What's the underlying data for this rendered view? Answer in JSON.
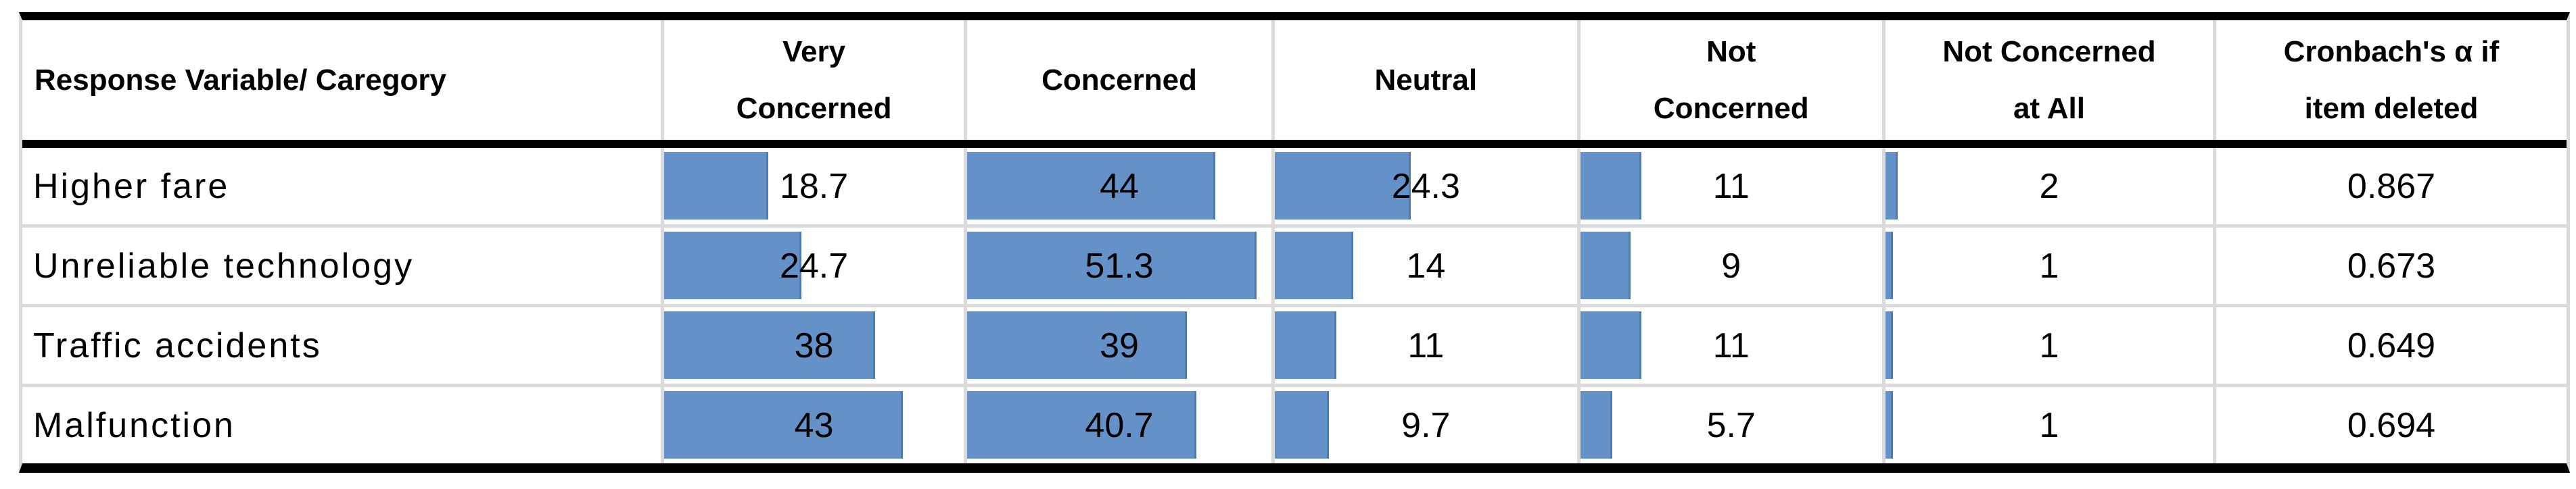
{
  "table": {
    "headers": [
      "Response Variable/ Caregory",
      "Very\nConcerned",
      "Concerned",
      "Neutral",
      "Not\nConcerned",
      "Not Concerned\nat All",
      "Cronbach's α if\nitem deleted"
    ],
    "rows": [
      {
        "label": "Higher fare",
        "bars": [
          "18.7",
          "44",
          "24.3",
          "11",
          "2"
        ],
        "cronbach": "0.867"
      },
      {
        "label": "Unreliable technology",
        "bars": [
          "24.7",
          "51.3",
          "14",
          "9",
          "1"
        ],
        "cronbach": "0.673"
      },
      {
        "label": "Traffic accidents",
        "bars": [
          "38",
          "39",
          "11",
          "11",
          "1"
        ],
        "cronbach": "0.649"
      },
      {
        "label": "Malfunction",
        "bars": [
          "43",
          "40.7",
          "9.7",
          "5.7",
          "1"
        ],
        "cronbach": "0.694"
      }
    ],
    "bar_color": "#6491c8",
    "bar_border_color": "#4f7bb0",
    "grid_line_color": "#dbdbdb",
    "border_color": "#000000"
  },
  "chart_data": {
    "type": "table",
    "title": "Concern levels by response variable with in-cell data bars",
    "columns": [
      "Response Variable/ Caregory",
      "Very Concerned",
      "Concerned",
      "Neutral",
      "Not Concerned",
      "Not Concerned at All",
      "Cronbach's α if item deleted"
    ],
    "rows": [
      {
        "category": "Higher fare",
        "very_concerned": 18.7,
        "concerned": 44,
        "neutral": 24.3,
        "not_concerned": 11,
        "not_concerned_at_all": 2,
        "cronbach_alpha_if_item_deleted": 0.867
      },
      {
        "category": "Unreliable technology",
        "very_concerned": 24.7,
        "concerned": 51.3,
        "neutral": 14,
        "not_concerned": 9,
        "not_concerned_at_all": 1,
        "cronbach_alpha_if_item_deleted": 0.673
      },
      {
        "category": "Traffic accidents",
        "very_concerned": 38,
        "concerned": 39,
        "neutral": 11,
        "not_concerned": 11,
        "not_concerned_at_all": 1,
        "cronbach_alpha_if_item_deleted": 0.649
      },
      {
        "category": "Malfunction",
        "very_concerned": 43,
        "concerned": 40.7,
        "neutral": 9.7,
        "not_concerned": 5.7,
        "not_concerned_at_all": 1,
        "cronbach_alpha_if_item_deleted": 0.694
      }
    ],
    "bars": {
      "scale_max": 51.3,
      "fill_percent_at_max": 95,
      "min_percent": 2.2,
      "color": "#6491c8",
      "note": "horizontal data bars drawn from the left edge of each concern cell, proportional to value"
    },
    "legend_position": "none",
    "grid": "light-gray column and row separators, thick black top/bottom and header rules"
  }
}
